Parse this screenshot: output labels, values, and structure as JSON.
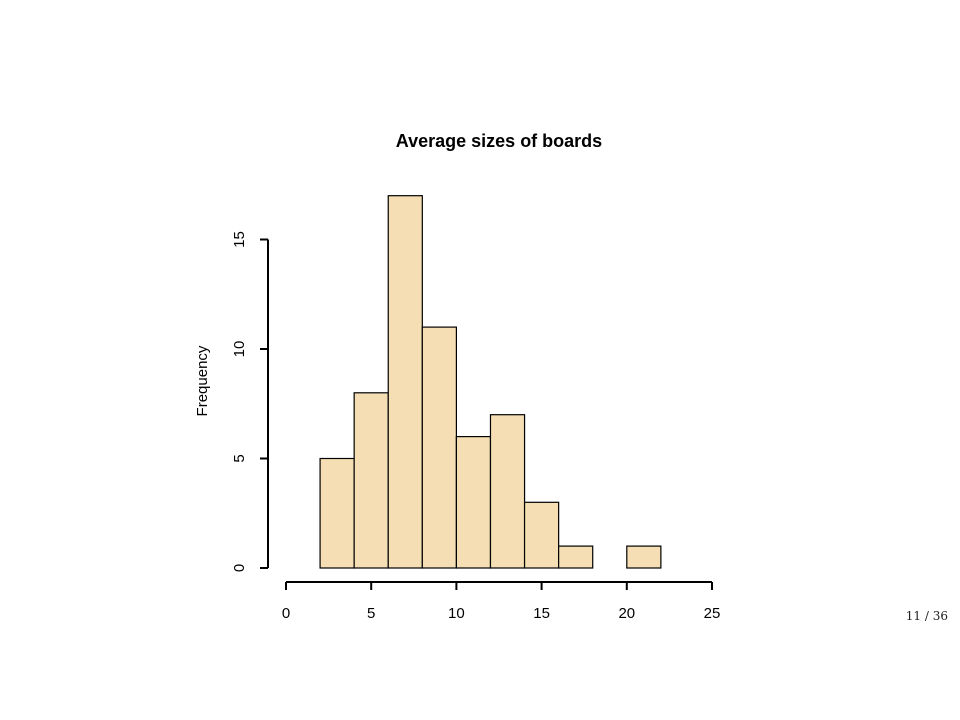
{
  "chart_data": {
    "type": "bar",
    "title": "Average sizes of boards",
    "xlabel": "",
    "ylabel": "Frequency",
    "bins": [
      {
        "start": 2,
        "end": 4,
        "count": 5
      },
      {
        "start": 4,
        "end": 6,
        "count": 8
      },
      {
        "start": 6,
        "end": 8,
        "count": 17
      },
      {
        "start": 8,
        "end": 10,
        "count": 11
      },
      {
        "start": 10,
        "end": 12,
        "count": 6
      },
      {
        "start": 12,
        "end": 14,
        "count": 7
      },
      {
        "start": 14,
        "end": 16,
        "count": 3
      },
      {
        "start": 16,
        "end": 18,
        "count": 1
      },
      {
        "start": 18,
        "end": 20,
        "count": 0
      },
      {
        "start": 20,
        "end": 22,
        "count": 1
      }
    ],
    "xlim": [
      0,
      25
    ],
    "ylim": [
      0,
      17
    ],
    "x_ticks": [
      "0",
      "5",
      "10",
      "15",
      "20",
      "25"
    ],
    "y_ticks": [
      "0",
      "5",
      "10",
      "15"
    ],
    "bar_fill": "#f5deb3",
    "bar_stroke": "#000000",
    "grid": false,
    "legend": "none"
  },
  "footer": {
    "page_number": "11 / 36"
  }
}
